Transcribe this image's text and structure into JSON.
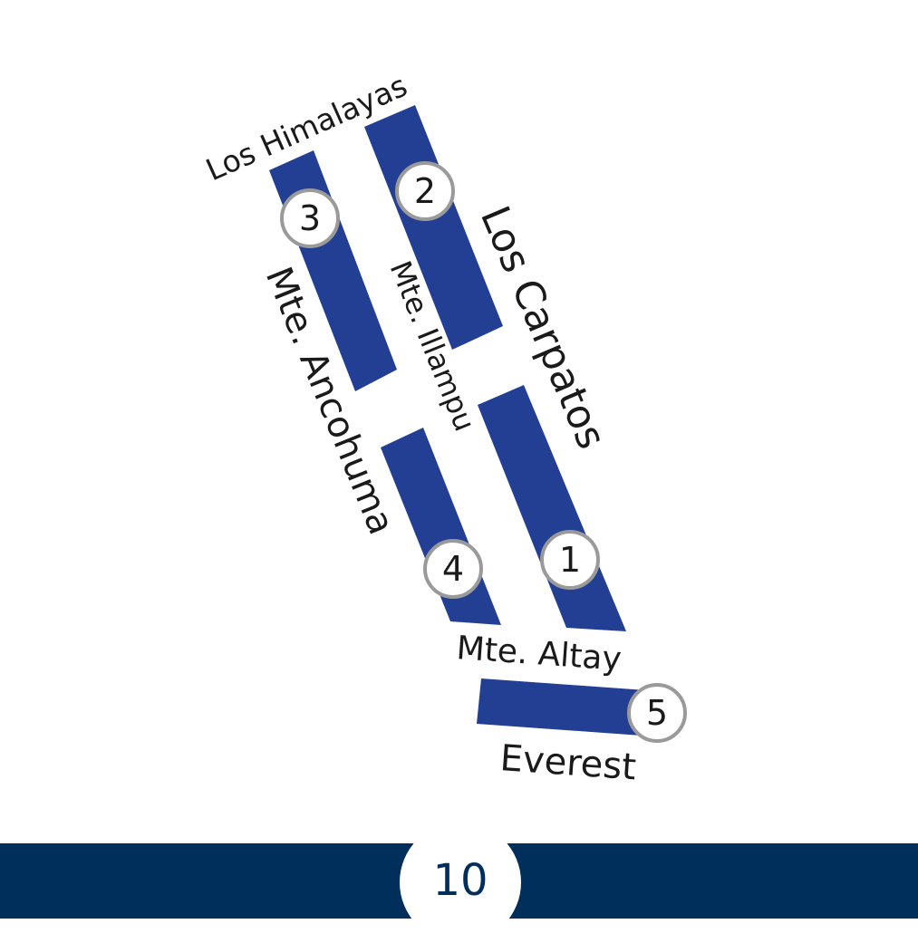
{
  "colors": {
    "block": "#233f94",
    "footer": "#002f5b",
    "marker_border": "#9a9a9a",
    "text": "#1a1a1a"
  },
  "streets": {
    "los_himalayas": "Los Himalayas",
    "los_carpatos": "Los Carpatos",
    "mte_illampu": "Mte. Illampu",
    "mte_ancohuma": "Mte. Ancohuma",
    "mte_altay": "Mte. Altay",
    "everest": "Everest"
  },
  "markers": [
    "1",
    "2",
    "3",
    "4",
    "5"
  ],
  "footer": {
    "page_number": "10"
  }
}
